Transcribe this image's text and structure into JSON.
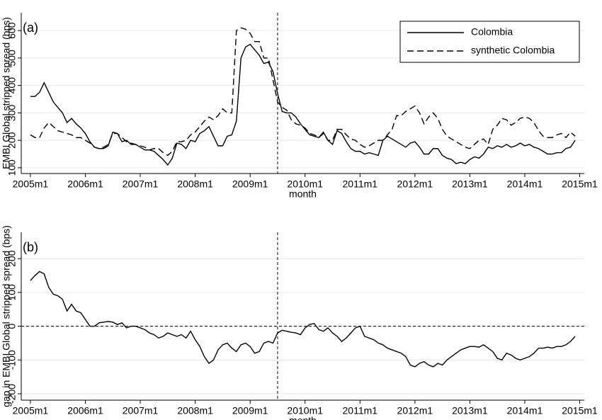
{
  "chart_data": [
    {
      "type": "line",
      "label": "(a)",
      "xlabel": "month",
      "ylabel": "EMBI Global stripped spread (bps)",
      "x": [
        540,
        541,
        542,
        543,
        544,
        545,
        546,
        547,
        548,
        549,
        550,
        551,
        552,
        553,
        554,
        555,
        556,
        557,
        558,
        559,
        560,
        561,
        562,
        563,
        564,
        565,
        566,
        567,
        568,
        569,
        570,
        571,
        572,
        573,
        574,
        575,
        576,
        577,
        578,
        579,
        580,
        581,
        582,
        583,
        584,
        585,
        586,
        587,
        588,
        589,
        590,
        591,
        592,
        593,
        594,
        595,
        596,
        597,
        598,
        599,
        600,
        601,
        602,
        603,
        604,
        605,
        606,
        607,
        608,
        609,
        610,
        611,
        612,
        613,
        614,
        615,
        616,
        617,
        618,
        619,
        620,
        621,
        622,
        623,
        624,
        625,
        626,
        627,
        628,
        629,
        630,
        631,
        632,
        633,
        634,
        635,
        636,
        637,
        638,
        639,
        640,
        641,
        642,
        643,
        644,
        645,
        646,
        647,
        648,
        649,
        650,
        651,
        652,
        653,
        654,
        655,
        656,
        657,
        658,
        659
      ],
      "series": [
        {
          "name": "Colombia",
          "color": "#000000",
          "dash": false,
          "values": [
            360,
            360,
            375,
            410,
            375,
            340,
            320,
            300,
            265,
            280,
            260,
            245,
            225,
            195,
            175,
            170,
            170,
            180,
            230,
            225,
            195,
            200,
            185,
            185,
            175,
            165,
            165,
            160,
            145,
            130,
            110,
            135,
            190,
            185,
            170,
            200,
            195,
            225,
            235,
            250,
            215,
            180,
            180,
            215,
            220,
            270,
            500,
            540,
            550,
            530,
            510,
            480,
            485,
            450,
            370,
            305,
            300,
            300,
            285,
            260,
            240,
            220,
            215,
            210,
            230,
            200,
            185,
            235,
            225,
            195,
            170,
            160,
            160,
            150,
            155,
            150,
            145,
            200,
            215,
            205,
            195,
            185,
            175,
            190,
            195,
            175,
            150,
            150,
            170,
            170,
            145,
            135,
            130,
            115,
            120,
            115,
            130,
            140,
            135,
            150,
            175,
            170,
            180,
            175,
            185,
            175,
            180,
            190,
            180,
            185,
            175,
            170,
            160,
            150,
            150,
            155,
            155,
            170,
            175,
            200
          ]
        },
        {
          "name": "synthetic Colombia",
          "color": "#000000",
          "dash": true,
          "values": [
            220,
            210,
            210,
            245,
            265,
            250,
            235,
            230,
            225,
            220,
            210,
            210,
            200,
            190,
            175,
            170,
            175,
            185,
            225,
            225,
            210,
            195,
            190,
            185,
            180,
            175,
            165,
            170,
            170,
            155,
            145,
            160,
            195,
            195,
            200,
            220,
            230,
            250,
            270,
            285,
            275,
            290,
            315,
            300,
            300,
            600,
            610,
            605,
            590,
            560,
            560,
            500,
            500,
            420,
            340,
            320,
            310,
            275,
            260,
            255,
            245,
            225,
            220,
            210,
            225,
            200,
            200,
            240,
            240,
            220,
            205,
            200,
            185,
            175,
            180,
            190,
            200,
            200,
            220,
            240,
            290,
            290,
            305,
            315,
            325,
            300,
            260,
            285,
            300,
            280,
            240,
            215,
            205,
            195,
            185,
            175,
            170,
            185,
            200,
            205,
            185,
            240,
            255,
            280,
            275,
            255,
            265,
            280,
            285,
            280,
            265,
            235,
            215,
            210,
            210,
            220,
            225,
            210,
            230,
            215
          ]
        }
      ],
      "xlim": [
        538,
        661
      ],
      "xticks": [
        {
          "value": 540,
          "label": "2005m1"
        },
        {
          "value": 552,
          "label": "2006m1"
        },
        {
          "value": 564,
          "label": "2007m1"
        },
        {
          "value": 576,
          "label": "2008m1"
        },
        {
          "value": 588,
          "label": "2009m1"
        },
        {
          "value": 600,
          "label": "2010m1"
        },
        {
          "value": 612,
          "label": "2011m1"
        },
        {
          "value": 624,
          "label": "2012m1"
        },
        {
          "value": 636,
          "label": "2013m1"
        },
        {
          "value": 648,
          "label": "2014m1"
        },
        {
          "value": 660,
          "label": "2015m1"
        }
      ],
      "ylim": [
        79,
        665
      ],
      "yticks": [
        100,
        200,
        300,
        400,
        500,
        600
      ],
      "grid": true,
      "xline": 594,
      "legend": "top-right"
    },
    {
      "type": "line",
      "label": "(b)",
      "xlabel": "month",
      "ylabel": "gap in EMBI Global stripped spread (bps)",
      "x": [
        540,
        541,
        542,
        543,
        544,
        545,
        546,
        547,
        548,
        549,
        550,
        551,
        552,
        553,
        554,
        555,
        556,
        557,
        558,
        559,
        560,
        561,
        562,
        563,
        564,
        565,
        566,
        567,
        568,
        569,
        570,
        571,
        572,
        573,
        574,
        575,
        576,
        577,
        578,
        579,
        580,
        581,
        582,
        583,
        584,
        585,
        586,
        587,
        588,
        589,
        590,
        591,
        592,
        593,
        594,
        595,
        596,
        597,
        598,
        599,
        600,
        601,
        602,
        603,
        604,
        605,
        606,
        607,
        608,
        609,
        610,
        611,
        612,
        613,
        614,
        615,
        616,
        617,
        618,
        619,
        620,
        621,
        622,
        623,
        624,
        625,
        626,
        627,
        628,
        629,
        630,
        631,
        632,
        633,
        634,
        635,
        636,
        637,
        638,
        639,
        640,
        641,
        642,
        643,
        644,
        645,
        646,
        647,
        648,
        649,
        650,
        651,
        652,
        653,
        654,
        655,
        656,
        657,
        658,
        659
      ],
      "series": [
        {
          "color": "#000000",
          "dash": false,
          "values": [
            135,
            150,
            162,
            155,
            115,
            95,
            90,
            80,
            45,
            65,
            45,
            40,
            20,
            0,
            0,
            10,
            12,
            14,
            12,
            5,
            10,
            -5,
            0,
            0,
            -5,
            -10,
            -20,
            -25,
            -35,
            -30,
            -20,
            -25,
            -30,
            -25,
            -35,
            -15,
            -40,
            -60,
            -90,
            -110,
            -100,
            -70,
            -55,
            -50,
            -65,
            -75,
            -55,
            -50,
            -60,
            -80,
            -75,
            -50,
            -45,
            -50,
            -20,
            -12,
            -15,
            -18,
            -20,
            -25,
            -5,
            5,
            8,
            -10,
            -15,
            -5,
            -20,
            -30,
            -45,
            -35,
            -20,
            -5,
            0,
            -30,
            -35,
            -40,
            -50,
            -55,
            -65,
            -70,
            -75,
            -80,
            -90,
            -115,
            -120,
            -110,
            -105,
            -115,
            -120,
            -110,
            -115,
            -100,
            -90,
            -80,
            -70,
            -65,
            -60,
            -60,
            -62,
            -55,
            -65,
            -75,
            -95,
            -100,
            -80,
            -85,
            -95,
            -100,
            -95,
            -90,
            -80,
            -65,
            -65,
            -62,
            -65,
            -60,
            -60,
            -55,
            -45,
            -30
          ]
        }
      ],
      "xlim": [
        538,
        661
      ],
      "xticks": [
        {
          "value": 540,
          "label": "2005m1"
        },
        {
          "value": 552,
          "label": "2006m1"
        },
        {
          "value": 564,
          "label": "2007m1"
        },
        {
          "value": 576,
          "label": "2008m1"
        },
        {
          "value": 588,
          "label": "2009m1"
        },
        {
          "value": 600,
          "label": "2010m1"
        },
        {
          "value": 612,
          "label": "2011m1"
        },
        {
          "value": 624,
          "label": "2012m1"
        },
        {
          "value": 636,
          "label": "2013m1"
        },
        {
          "value": 648,
          "label": "2014m1"
        },
        {
          "value": 660,
          "label": "2015m1"
        }
      ],
      "ylim": [
        -219,
        278
      ],
      "yticks": [
        -200,
        -100,
        0,
        100,
        200
      ],
      "grid": true,
      "xline": 594,
      "yline": 0
    }
  ]
}
